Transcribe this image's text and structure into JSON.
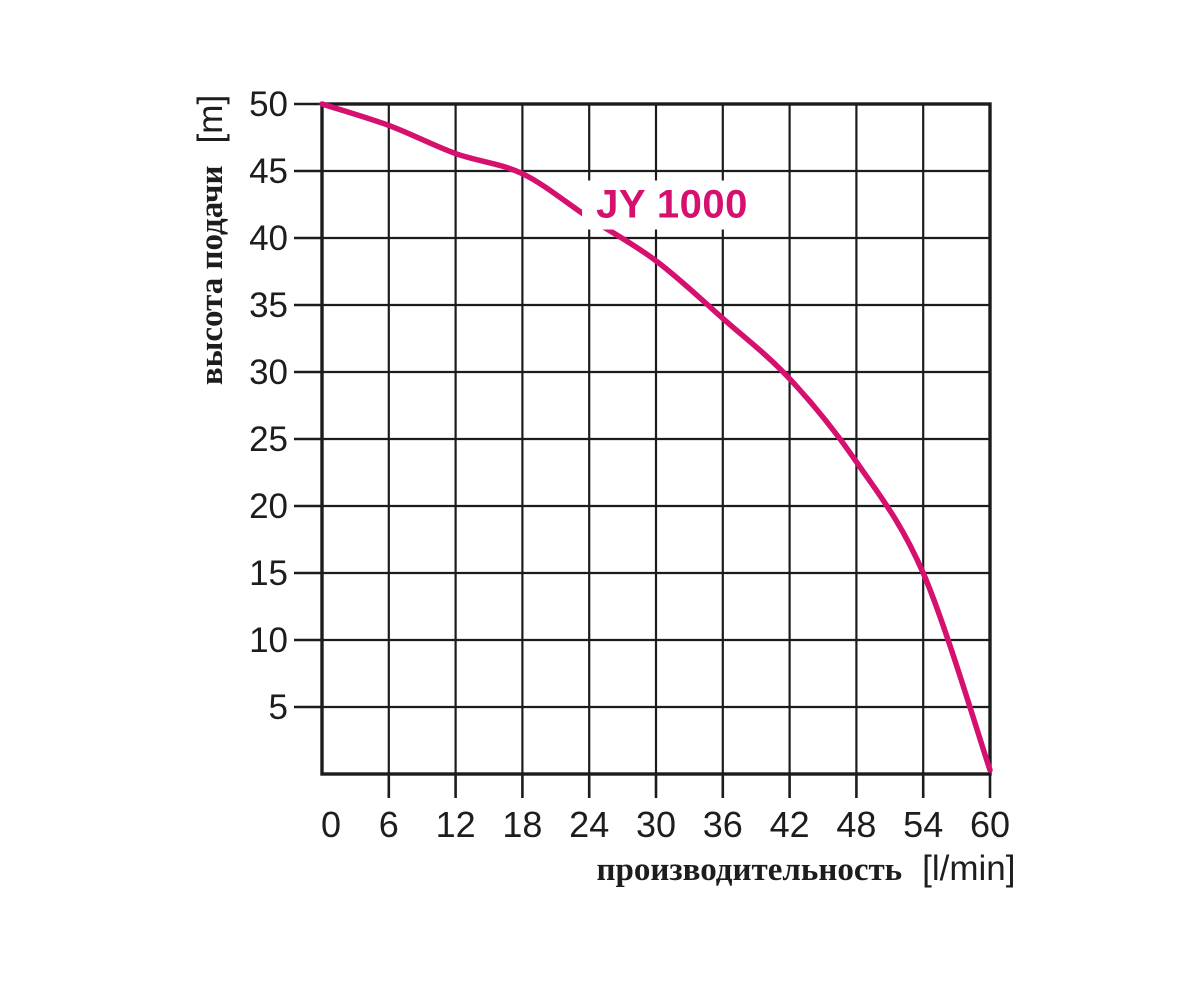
{
  "page": {
    "background": "#ffffff",
    "description": "pump performance curve"
  },
  "chart_data": {
    "type": "line",
    "title": "JY 1000",
    "xlabel": "производительность [l/min]",
    "ylabel": "высота подачи [m]",
    "xlabel_parts": {
      "word": "производительность",
      "unit": "[l/min]"
    },
    "ylabel_parts": {
      "word": "высота подачи",
      "unit": "[m]"
    },
    "xlim": [
      0,
      60
    ],
    "ylim": [
      0,
      50
    ],
    "x_ticks": [
      0,
      6,
      12,
      18,
      24,
      30,
      36,
      42,
      48,
      54,
      60
    ],
    "y_ticks": [
      50,
      45,
      40,
      35,
      30,
      25,
      20,
      15,
      10,
      5
    ],
    "grid": "on",
    "legend": "none",
    "series": [
      {
        "name": "JY 1000",
        "x": [
          0,
          6,
          12,
          18,
          24,
          30,
          36,
          42,
          48,
          54,
          60
        ],
        "y": [
          50,
          48.4,
          46.3,
          44.8,
          41.5,
          38.3,
          34,
          29.5,
          23.3,
          15,
          0.3
        ],
        "color": "#d6106e"
      }
    ]
  },
  "colors": {
    "curve": "#d6106e",
    "grid_line": "#1c1c1c",
    "text": "#1d1d1d",
    "background": "#ffffff"
  }
}
